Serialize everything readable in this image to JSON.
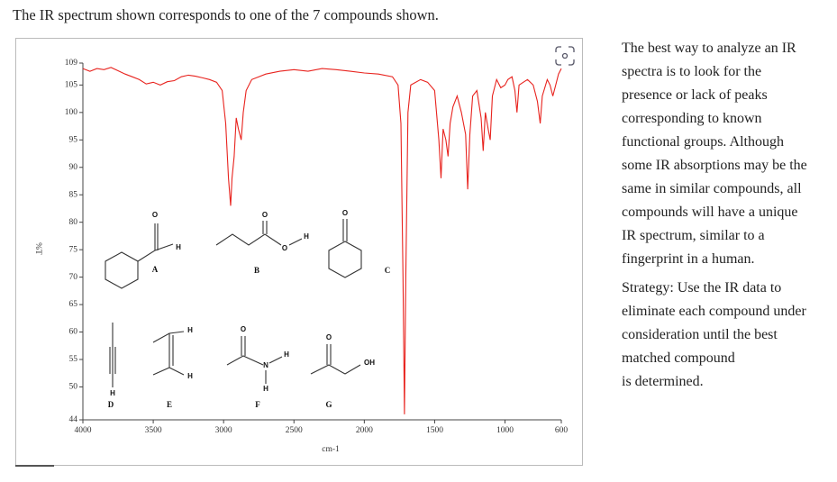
{
  "header": {
    "title": "The IR spectrum shown corresponds to one of the 7 compounds shown."
  },
  "chart_data": {
    "type": "line",
    "ylabel": "%T",
    "xlabel": "cm-1",
    "xlim": [
      4000,
      600
    ],
    "xticks": [
      4000,
      3500,
      3000,
      2500,
      2000,
      1500,
      1000,
      600
    ],
    "ylim": [
      44,
      109
    ],
    "yticks": [
      44,
      50,
      55,
      60,
      65,
      70,
      75,
      80,
      85,
      90,
      95,
      100,
      105,
      109
    ],
    "x": [
      4000,
      3950,
      3900,
      3850,
      3800,
      3750,
      3700,
      3650,
      3600,
      3550,
      3500,
      3450,
      3400,
      3350,
      3300,
      3250,
      3200,
      3150,
      3100,
      3050,
      3010,
      2985,
      2965,
      2950,
      2940,
      2925,
      2910,
      2895,
      2875,
      2860,
      2840,
      2800,
      2750,
      2700,
      2600,
      2500,
      2400,
      2300,
      2200,
      2100,
      2000,
      1900,
      1800,
      1760,
      1740,
      1725,
      1715,
      1705,
      1690,
      1670,
      1600,
      1550,
      1500,
      1470,
      1455,
      1440,
      1420,
      1405,
      1390,
      1370,
      1340,
      1310,
      1280,
      1265,
      1250,
      1230,
      1200,
      1170,
      1155,
      1140,
      1120,
      1105,
      1090,
      1060,
      1030,
      1000,
      980,
      950,
      930,
      915,
      900,
      870,
      840,
      800,
      770,
      750,
      735,
      700,
      680,
      660,
      640,
      620,
      600
    ],
    "series": [
      {
        "color": "#e8231e",
        "values": [
          108,
          107.5,
          108,
          107.8,
          108.2,
          107.6,
          107,
          106.5,
          106,
          105.2,
          105.5,
          105,
          105.6,
          105.8,
          106.5,
          106.8,
          106.6,
          106.3,
          106,
          105.5,
          104,
          98,
          88,
          83,
          88,
          92,
          99,
          97,
          95,
          100,
          104,
          106,
          106.5,
          107,
          107.5,
          107.8,
          107.5,
          108,
          107.8,
          107.5,
          107.2,
          107,
          106.5,
          105,
          98,
          70,
          45,
          70,
          100,
          105,
          106,
          105.5,
          104,
          95,
          88,
          97,
          95,
          92,
          98,
          101,
          103,
          100,
          96,
          86,
          96,
          103,
          104,
          99,
          93,
          100,
          97,
          95,
          103,
          106,
          104.5,
          105,
          106,
          106.5,
          104,
          100,
          105,
          105.5,
          106,
          105,
          102,
          98,
          103,
          106,
          105,
          103,
          105,
          107,
          108
        ]
      }
    ],
    "structures": [
      {
        "label": "A",
        "atoms": [
          "O",
          "H"
        ]
      },
      {
        "label": "B",
        "atoms": [
          "O",
          "O",
          "H"
        ]
      },
      {
        "label": "C",
        "atoms": [
          "O"
        ]
      },
      {
        "label": "D",
        "atoms": [
          "H"
        ]
      },
      {
        "label": "E",
        "atoms": [
          "H",
          "H"
        ]
      },
      {
        "label": "F",
        "atoms": [
          "O",
          "N",
          "H",
          "H"
        ]
      },
      {
        "label": "G",
        "atoms": [
          "O",
          "OH"
        ]
      }
    ]
  },
  "sidebar": {
    "paragraphs": [
      [
        "The best way to analyze an IR",
        "spectra is to look for the",
        "presence or lack of peaks",
        "corresponding to known",
        "functional groups. Although",
        "some IR absorptions may be the",
        "same in similar compounds, all",
        "compounds will have a unique",
        "IR spectrum, similar to a",
        "fingerprint in a human."
      ],
      [
        "Strategy: Use the IR data to",
        "eliminate each compound under",
        "consideration until the best",
        "matched compound",
        "is determined."
      ]
    ]
  }
}
